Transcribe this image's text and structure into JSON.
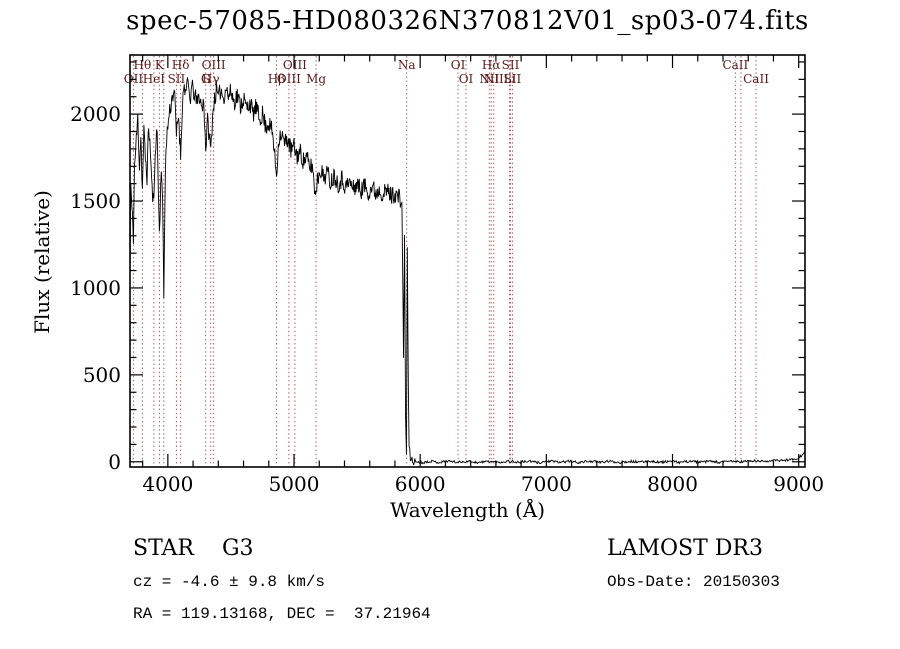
{
  "title": "spec-57085-HD080326N370812V01_sp03-074.fits",
  "footer": {
    "class_line": "STAR    G3",
    "survey": "LAMOST DR3",
    "cz_line": "cz = -4.6 ± 9.8 km/s",
    "obs_date": "Obs-Date: 20150303",
    "radec_line": "RA = 119.13168, DEC =  37.21964"
  },
  "chart_data": {
    "type": "line",
    "title": "spec-57085-HD080326N370812V01_sp03-074.fits",
    "xlabel": "Wavelength (Å)",
    "ylabel": "Flux (relative)",
    "xlim": [
      3700,
      9050
    ],
    "ylim": [
      -30,
      2340
    ],
    "x_ticks": [
      4000,
      5000,
      6000,
      7000,
      8000,
      9000
    ],
    "y_ticks": [
      0,
      500,
      1000,
      1500,
      2000
    ],
    "x_minor_step": 200,
    "y_minor_step": 100,
    "grid": false,
    "legend": "none",
    "line_color": "#000000",
    "marker_line_color": "#b06060",
    "marker_label_color": "#5c1a1a",
    "noise_seed": 11,
    "noise_segments": [
      [
        3700,
        5850,
        55
      ],
      [
        5850,
        5960,
        25
      ],
      [
        5960,
        9050,
        7
      ]
    ],
    "spectral_lines": [
      {
        "wl": 3727,
        "label": "OII",
        "row": 2
      },
      {
        "wl": 3798,
        "label": "Hθ",
        "row": 1
      },
      {
        "wl": 3889,
        "label": "HeI",
        "row": 2
      },
      {
        "wl": 3933,
        "label": "K",
        "row": 1
      },
      {
        "wl": 3968,
        "label": "",
        "row": 2
      },
      {
        "wl": 4068,
        "label": "SII",
        "row": 2
      },
      {
        "wl": 4101,
        "label": "Hδ",
        "row": 1
      },
      {
        "wl": 4300,
        "label": "G",
        "row": 2
      },
      {
        "wl": 4340,
        "label": "Hγ",
        "row": 2
      },
      {
        "wl": 4363,
        "label": "OIII",
        "row": 1
      },
      {
        "wl": 4861,
        "label": "Hβ",
        "row": 2
      },
      {
        "wl": 4959,
        "label": "OIII",
        "row": 2
      },
      {
        "wl": 5007,
        "label": "OIII",
        "row": 1
      },
      {
        "wl": 5175,
        "label": "Mg",
        "row": 2
      },
      {
        "wl": 5893,
        "label": "Na",
        "row": 1
      },
      {
        "wl": 6300,
        "label": "OI",
        "row": 1
      },
      {
        "wl": 6363,
        "label": "OI",
        "row": 2
      },
      {
        "wl": 6548,
        "label": "NII",
        "row": 2
      },
      {
        "wl": 6563,
        "label": "Hα",
        "row": 1
      },
      {
        "wl": 6583,
        "label": "NII",
        "row": 2
      },
      {
        "wl": 6708,
        "label": "Li",
        "row": 2
      },
      {
        "wl": 6716,
        "label": "SII",
        "row": 1
      },
      {
        "wl": 6731,
        "label": "SII",
        "row": 2
      },
      {
        "wl": 8498,
        "label": "CaII",
        "row": 1
      },
      {
        "wl": 8542,
        "label": "",
        "row": 1
      },
      {
        "wl": 8662,
        "label": "CaII",
        "row": 2
      }
    ],
    "points": [
      [
        3700,
        1050
      ],
      [
        3706,
        1600
      ],
      [
        3715,
        1450
      ],
      [
        3727,
        1300
      ],
      [
        3736,
        1700
      ],
      [
        3750,
        1850
      ],
      [
        3762,
        1980
      ],
      [
        3775,
        1700
      ],
      [
        3786,
        1880
      ],
      [
        3798,
        1560
      ],
      [
        3810,
        1900
      ],
      [
        3822,
        1750
      ],
      [
        3835,
        1640
      ],
      [
        3848,
        1940
      ],
      [
        3862,
        1780
      ],
      [
        3875,
        1560
      ],
      [
        3889,
        1480
      ],
      [
        3900,
        1820
      ],
      [
        3915,
        1900
      ],
      [
        3933,
        1300
      ],
      [
        3948,
        1720
      ],
      [
        3958,
        1500
      ],
      [
        3968,
        950
      ],
      [
        3980,
        1700
      ],
      [
        3995,
        1900
      ],
      [
        4010,
        2000
      ],
      [
        4030,
        2080
      ],
      [
        4050,
        2150
      ],
      [
        4068,
        1880
      ],
      [
        4085,
        2000
      ],
      [
        4101,
        1760
      ],
      [
        4115,
        2060
      ],
      [
        4130,
        2170
      ],
      [
        4145,
        2120
      ],
      [
        4160,
        2180
      ],
      [
        4175,
        2080
      ],
      [
        4190,
        2150
      ],
      [
        4210,
        2120
      ],
      [
        4230,
        2060
      ],
      [
        4250,
        2110
      ],
      [
        4270,
        2030
      ],
      [
        4285,
        2080
      ],
      [
        4300,
        1800
      ],
      [
        4315,
        1960
      ],
      [
        4328,
        1880
      ],
      [
        4340,
        1790
      ],
      [
        4355,
        2000
      ],
      [
        4370,
        2090
      ],
      [
        4385,
        2140
      ],
      [
        4400,
        2080
      ],
      [
        4420,
        2150
      ],
      [
        4440,
        2090
      ],
      [
        4460,
        2160
      ],
      [
        4480,
        2100
      ],
      [
        4500,
        2130
      ],
      [
        4525,
        2070
      ],
      [
        4550,
        2110
      ],
      [
        4575,
        2050
      ],
      [
        4600,
        2090
      ],
      [
        4625,
        2030
      ],
      [
        4650,
        2070
      ],
      [
        4675,
        2000
      ],
      [
        4700,
        2040
      ],
      [
        4725,
        1970
      ],
      [
        4750,
        2000
      ],
      [
        4775,
        1930
      ],
      [
        4800,
        1950
      ],
      [
        4830,
        1890
      ],
      [
        4861,
        1650
      ],
      [
        4880,
        1870
      ],
      [
        4900,
        1890
      ],
      [
        4925,
        1830
      ],
      [
        4950,
        1860
      ],
      [
        4975,
        1790
      ],
      [
        5000,
        1810
      ],
      [
        5025,
        1760
      ],
      [
        5050,
        1780
      ],
      [
        5075,
        1730
      ],
      [
        5100,
        1750
      ],
      [
        5125,
        1690
      ],
      [
        5145,
        1710
      ],
      [
        5167,
        1540
      ],
      [
        5185,
        1620
      ],
      [
        5210,
        1690
      ],
      [
        5235,
        1630
      ],
      [
        5260,
        1670
      ],
      [
        5290,
        1610
      ],
      [
        5320,
        1650
      ],
      [
        5350,
        1600
      ],
      [
        5380,
        1630
      ],
      [
        5410,
        1580
      ],
      [
        5440,
        1610
      ],
      [
        5470,
        1570
      ],
      [
        5500,
        1600
      ],
      [
        5530,
        1560
      ],
      [
        5560,
        1590
      ],
      [
        5590,
        1555
      ],
      [
        5620,
        1580
      ],
      [
        5650,
        1545
      ],
      [
        5680,
        1570
      ],
      [
        5710,
        1540
      ],
      [
        5740,
        1560
      ],
      [
        5770,
        1530
      ],
      [
        5800,
        1545
      ],
      [
        5830,
        1520
      ],
      [
        5855,
        1490
      ],
      [
        5868,
        620
      ],
      [
        5876,
        1310
      ],
      [
        5884,
        250
      ],
      [
        5891,
        60
      ],
      [
        5898,
        1230
      ],
      [
        5906,
        420
      ],
      [
        5912,
        90
      ],
      [
        5922,
        25
      ],
      [
        5940,
        5
      ],
      [
        5970,
        0
      ],
      [
        6020,
        -5
      ],
      [
        6080,
        4
      ],
      [
        6150,
        -4
      ],
      [
        6220,
        5
      ],
      [
        6300,
        -3
      ],
      [
        6380,
        4
      ],
      [
        6460,
        -5
      ],
      [
        6540,
        3
      ],
      [
        6620,
        -4
      ],
      [
        6700,
        4
      ],
      [
        6780,
        -3
      ],
      [
        6860,
        3
      ],
      [
        6940,
        -5
      ],
      [
        7020,
        4
      ],
      [
        7100,
        -3
      ],
      [
        7180,
        3
      ],
      [
        7260,
        -4
      ],
      [
        7340,
        4
      ],
      [
        7420,
        -3
      ],
      [
        7500,
        3
      ],
      [
        7580,
        -4
      ],
      [
        7660,
        3
      ],
      [
        7740,
        -3
      ],
      [
        7820,
        4
      ],
      [
        7900,
        -3
      ],
      [
        7980,
        3
      ],
      [
        8060,
        -4
      ],
      [
        8140,
        4
      ],
      [
        8220,
        -3
      ],
      [
        8300,
        3
      ],
      [
        8380,
        -4
      ],
      [
        8460,
        4
      ],
      [
        8540,
        0
      ],
      [
        8620,
        5
      ],
      [
        8700,
        3
      ],
      [
        8780,
        6
      ],
      [
        8860,
        8
      ],
      [
        8930,
        12
      ],
      [
        8990,
        20
      ],
      [
        9030,
        40
      ],
      [
        9050,
        65
      ]
    ]
  }
}
